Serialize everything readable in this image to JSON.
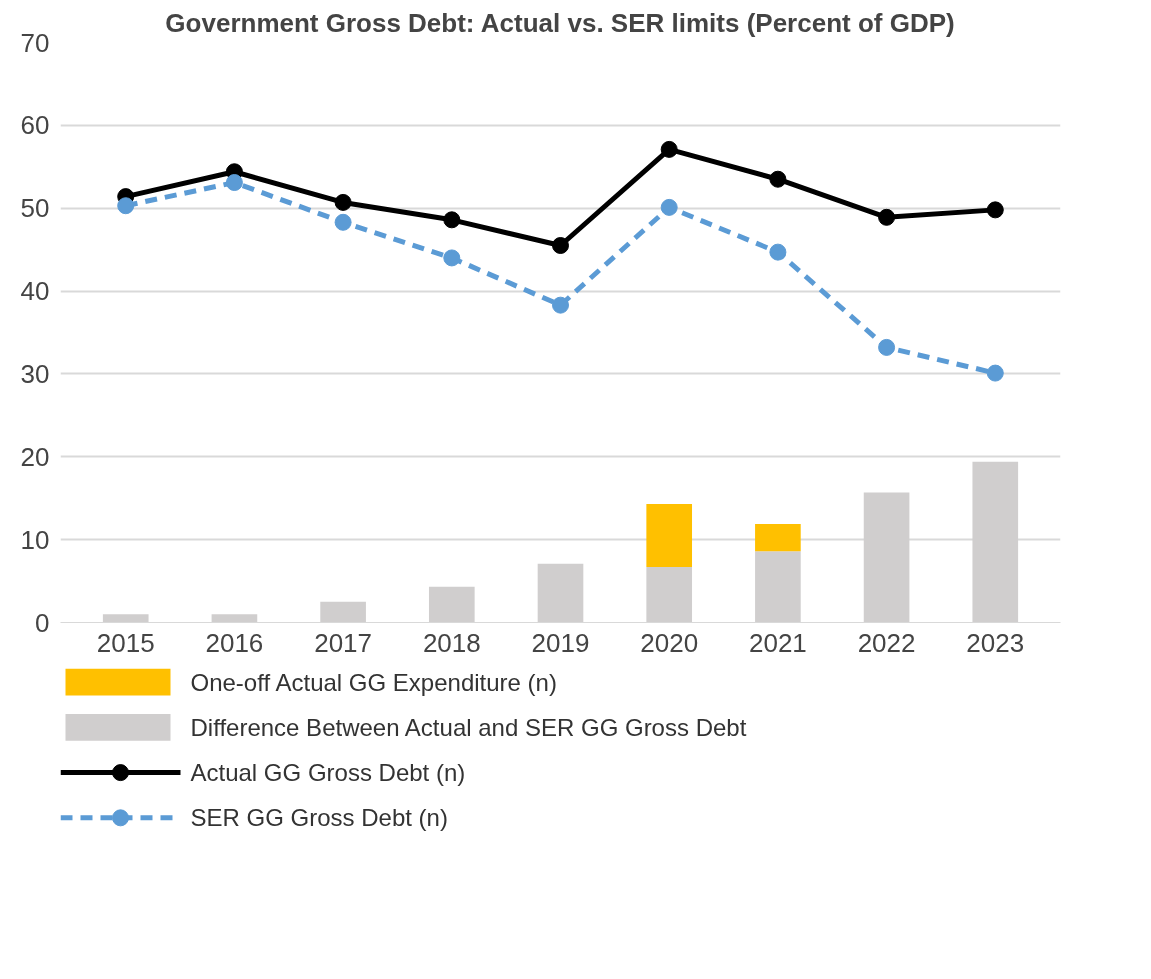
{
  "chart_data": {
    "type": "bar",
    "title": "Government Gross Debt: Actual vs. SER limits (Percent of GDP)",
    "categories": [
      "2015",
      "2016",
      "2017",
      "2018",
      "2019",
      "2020",
      "2021",
      "2022",
      "2023"
    ],
    "stacked": true,
    "ylim": [
      0,
      70
    ],
    "yticks": [
      0,
      10,
      20,
      30,
      40,
      50,
      60,
      70
    ],
    "grid": "y",
    "legend": "bottom",
    "marker": "circle",
    "series": [
      {
        "name": "Difference Between Actual and SER GG Gross Debt",
        "color": "#d0cece",
        "values": [
          1.0,
          1.0,
          2.5,
          4.3,
          7.1,
          6.7,
          8.6,
          15.7,
          19.4
        ]
      },
      {
        "name": "One-off Actual GG Expenditure (n)",
        "color": "#ffc000",
        "values": [
          null,
          null,
          null,
          null,
          null,
          7.6,
          3.3,
          null,
          null
        ]
      },
      {
        "name": "Actual GG Gross Debt (n)",
        "type": "line",
        "line_style": "solid",
        "color": "#000000",
        "values": [
          51.4,
          54.4,
          50.7,
          48.6,
          45.5,
          57.1,
          53.5,
          48.9,
          49.8
        ]
      },
      {
        "name": "SER GG Gross Debt (n)",
        "type": "line",
        "line_style": "dashed",
        "color": "#5b9bd5",
        "values": [
          50.3,
          53.1,
          48.3,
          44.0,
          38.3,
          50.1,
          44.7,
          33.2,
          30.1
        ]
      }
    ]
  }
}
